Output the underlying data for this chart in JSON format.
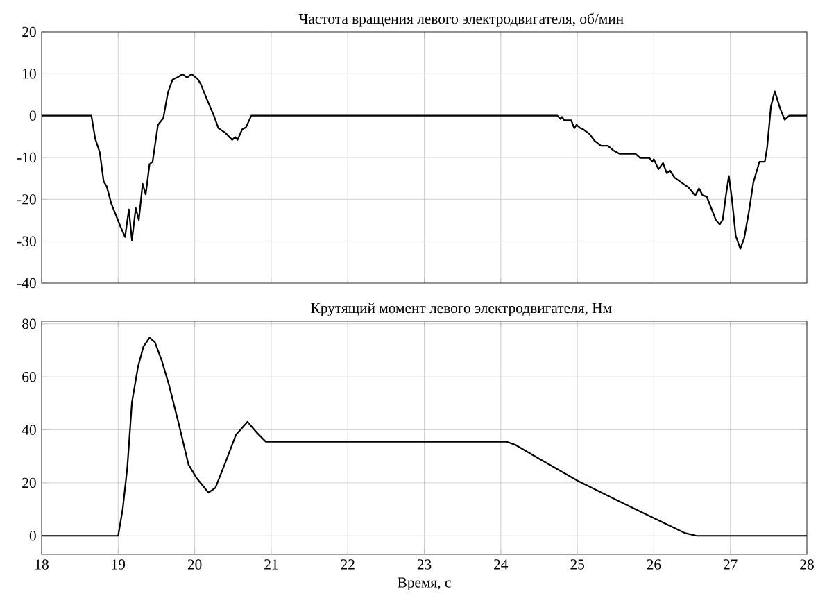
{
  "chart_data": [
    {
      "type": "line",
      "title": "Частота вращения левого электродвигателя, об/мин",
      "xlim": [
        18,
        28
      ],
      "xticks": [
        18,
        19,
        20,
        21,
        22,
        23,
        24,
        25,
        26,
        27,
        28
      ],
      "ylim": [
        -40,
        20
      ],
      "yticks": [
        -40,
        -30,
        -20,
        -10,
        0,
        10,
        20
      ],
      "grid": true,
      "tick_labels": "y",
      "series": [
        {
          "color": "#000000",
          "x": [
            18.0,
            18.65,
            18.7,
            18.76,
            18.81,
            18.85,
            18.91,
            19.03,
            19.09,
            19.14,
            19.18,
            19.23,
            19.27,
            19.32,
            19.36,
            19.41,
            19.45,
            19.52,
            19.59,
            19.65,
            19.71,
            19.77,
            19.84,
            19.9,
            19.96,
            20.04,
            20.08,
            20.16,
            20.25,
            20.31,
            20.4,
            20.49,
            20.53,
            20.56,
            20.62,
            20.67,
            20.74,
            24.74,
            24.78,
            24.8,
            24.83,
            24.92,
            24.96,
            24.99,
            25.04,
            25.08,
            25.16,
            25.23,
            25.31,
            25.4,
            25.47,
            25.55,
            25.76,
            25.82,
            25.94,
            25.98,
            26.0,
            26.06,
            26.12,
            26.17,
            26.21,
            26.27,
            26.36,
            26.45,
            26.54,
            26.59,
            26.64,
            26.69,
            26.75,
            26.81,
            26.86,
            26.9,
            26.94,
            26.98,
            27.02,
            27.07,
            27.13,
            27.18,
            27.24,
            27.3,
            27.38,
            27.45,
            27.48,
            27.53,
            27.58,
            27.65,
            27.71,
            27.77,
            28.0
          ],
          "values": [
            0,
            0,
            -5.5,
            -8.8,
            -15.7,
            -16.9,
            -21,
            -26.5,
            -29,
            -22.4,
            -29.8,
            -22.1,
            -24.9,
            -16.3,
            -18.8,
            -11.6,
            -11,
            -2.2,
            -0.6,
            5.5,
            8.6,
            9.1,
            9.9,
            9.1,
            9.9,
            8.7,
            7.5,
            3.9,
            0,
            -3.0,
            -4.1,
            -5.8,
            -5.1,
            -5.8,
            -3.3,
            -2.8,
            0,
            0,
            -0.8,
            -0.3,
            -1.1,
            -1.1,
            -3.0,
            -2.2,
            -3.0,
            -3.3,
            -4.4,
            -6.1,
            -7.2,
            -7.2,
            -8.3,
            -9.1,
            -9.1,
            -10.1,
            -10.1,
            -11.0,
            -10.4,
            -12.8,
            -11.3,
            -13.8,
            -13.1,
            -14.8,
            -16.0,
            -17.1,
            -19.1,
            -17.4,
            -19.1,
            -19.3,
            -22.1,
            -24.9,
            -26.0,
            -24.9,
            -19.3,
            -14.4,
            -19.9,
            -28.7,
            -31.8,
            -29.3,
            -23.2,
            -16.0,
            -11.0,
            -11.0,
            -7.7,
            2.2,
            5.8,
            1.7,
            -1.0,
            0,
            0
          ]
        }
      ]
    },
    {
      "type": "line",
      "title": "Крутящий момент левого электродвигателя, Нм",
      "xlabel": "Время, с",
      "xlim": [
        18,
        28
      ],
      "xticks": [
        18,
        19,
        20,
        21,
        22,
        23,
        24,
        25,
        26,
        27,
        28
      ],
      "ylim": [
        -7,
        81
      ],
      "yticks": [
        0,
        20,
        40,
        60,
        80
      ],
      "grid": true,
      "series": [
        {
          "color": "#000000",
          "x": [
            18.0,
            19.0,
            19.06,
            19.12,
            19.18,
            19.26,
            19.33,
            19.41,
            19.48,
            19.57,
            19.66,
            19.79,
            19.92,
            20.03,
            20.18,
            20.27,
            20.39,
            20.54,
            20.69,
            20.81,
            20.93,
            24.08,
            24.2,
            24.53,
            25.01,
            25.62,
            26.41,
            26.56,
            28.0
          ],
          "values": [
            0,
            0,
            10.2,
            25.9,
            50.4,
            63.9,
            71.4,
            74.8,
            73.1,
            66.1,
            57.4,
            42.5,
            26.8,
            21.6,
            16.3,
            18.1,
            26.8,
            38.2,
            43.0,
            39.0,
            35.5,
            35.5,
            34.2,
            28.6,
            20.7,
            12.0,
            1.0,
            0,
            0
          ]
        }
      ]
    }
  ]
}
